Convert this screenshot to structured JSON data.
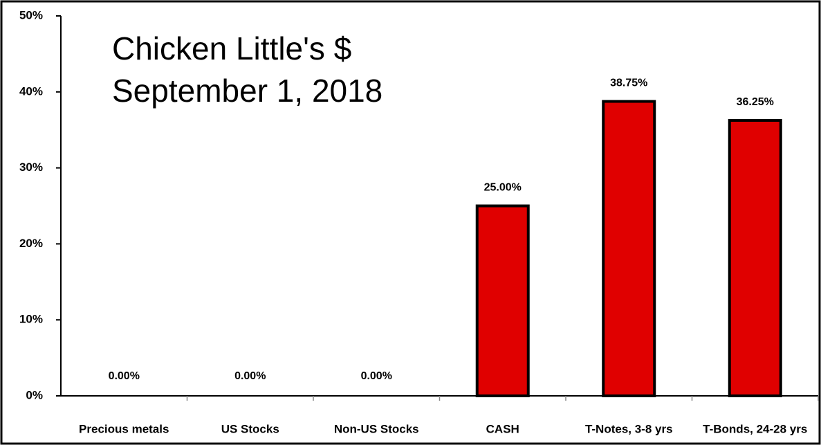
{
  "chart_data": {
    "type": "bar",
    "title": "Chicken Little's $",
    "subtitle": "September 1, 2018",
    "categories": [
      "Precious metals",
      "US Stocks",
      "Non-US Stocks",
      "CASH",
      "T-Notes, 3-8 yrs",
      "T-Bonds, 24-28 yrs"
    ],
    "values": [
      0,
      0,
      0,
      25,
      38.75,
      36.25
    ],
    "value_labels": [
      "0.00%",
      "0.00%",
      "0.00%",
      "25.00%",
      "38.75%",
      "36.25%"
    ],
    "color": "#e00000",
    "ylim": [
      0,
      50
    ],
    "yticks": [
      {
        "value": 0,
        "label": "0%"
      },
      {
        "value": 10,
        "label": "10%"
      },
      {
        "value": 20,
        "label": "20%"
      },
      {
        "value": 30,
        "label": "30%"
      },
      {
        "value": 40,
        "label": "40%"
      },
      {
        "value": 50,
        "label": "50%"
      }
    ],
    "grid": false
  }
}
